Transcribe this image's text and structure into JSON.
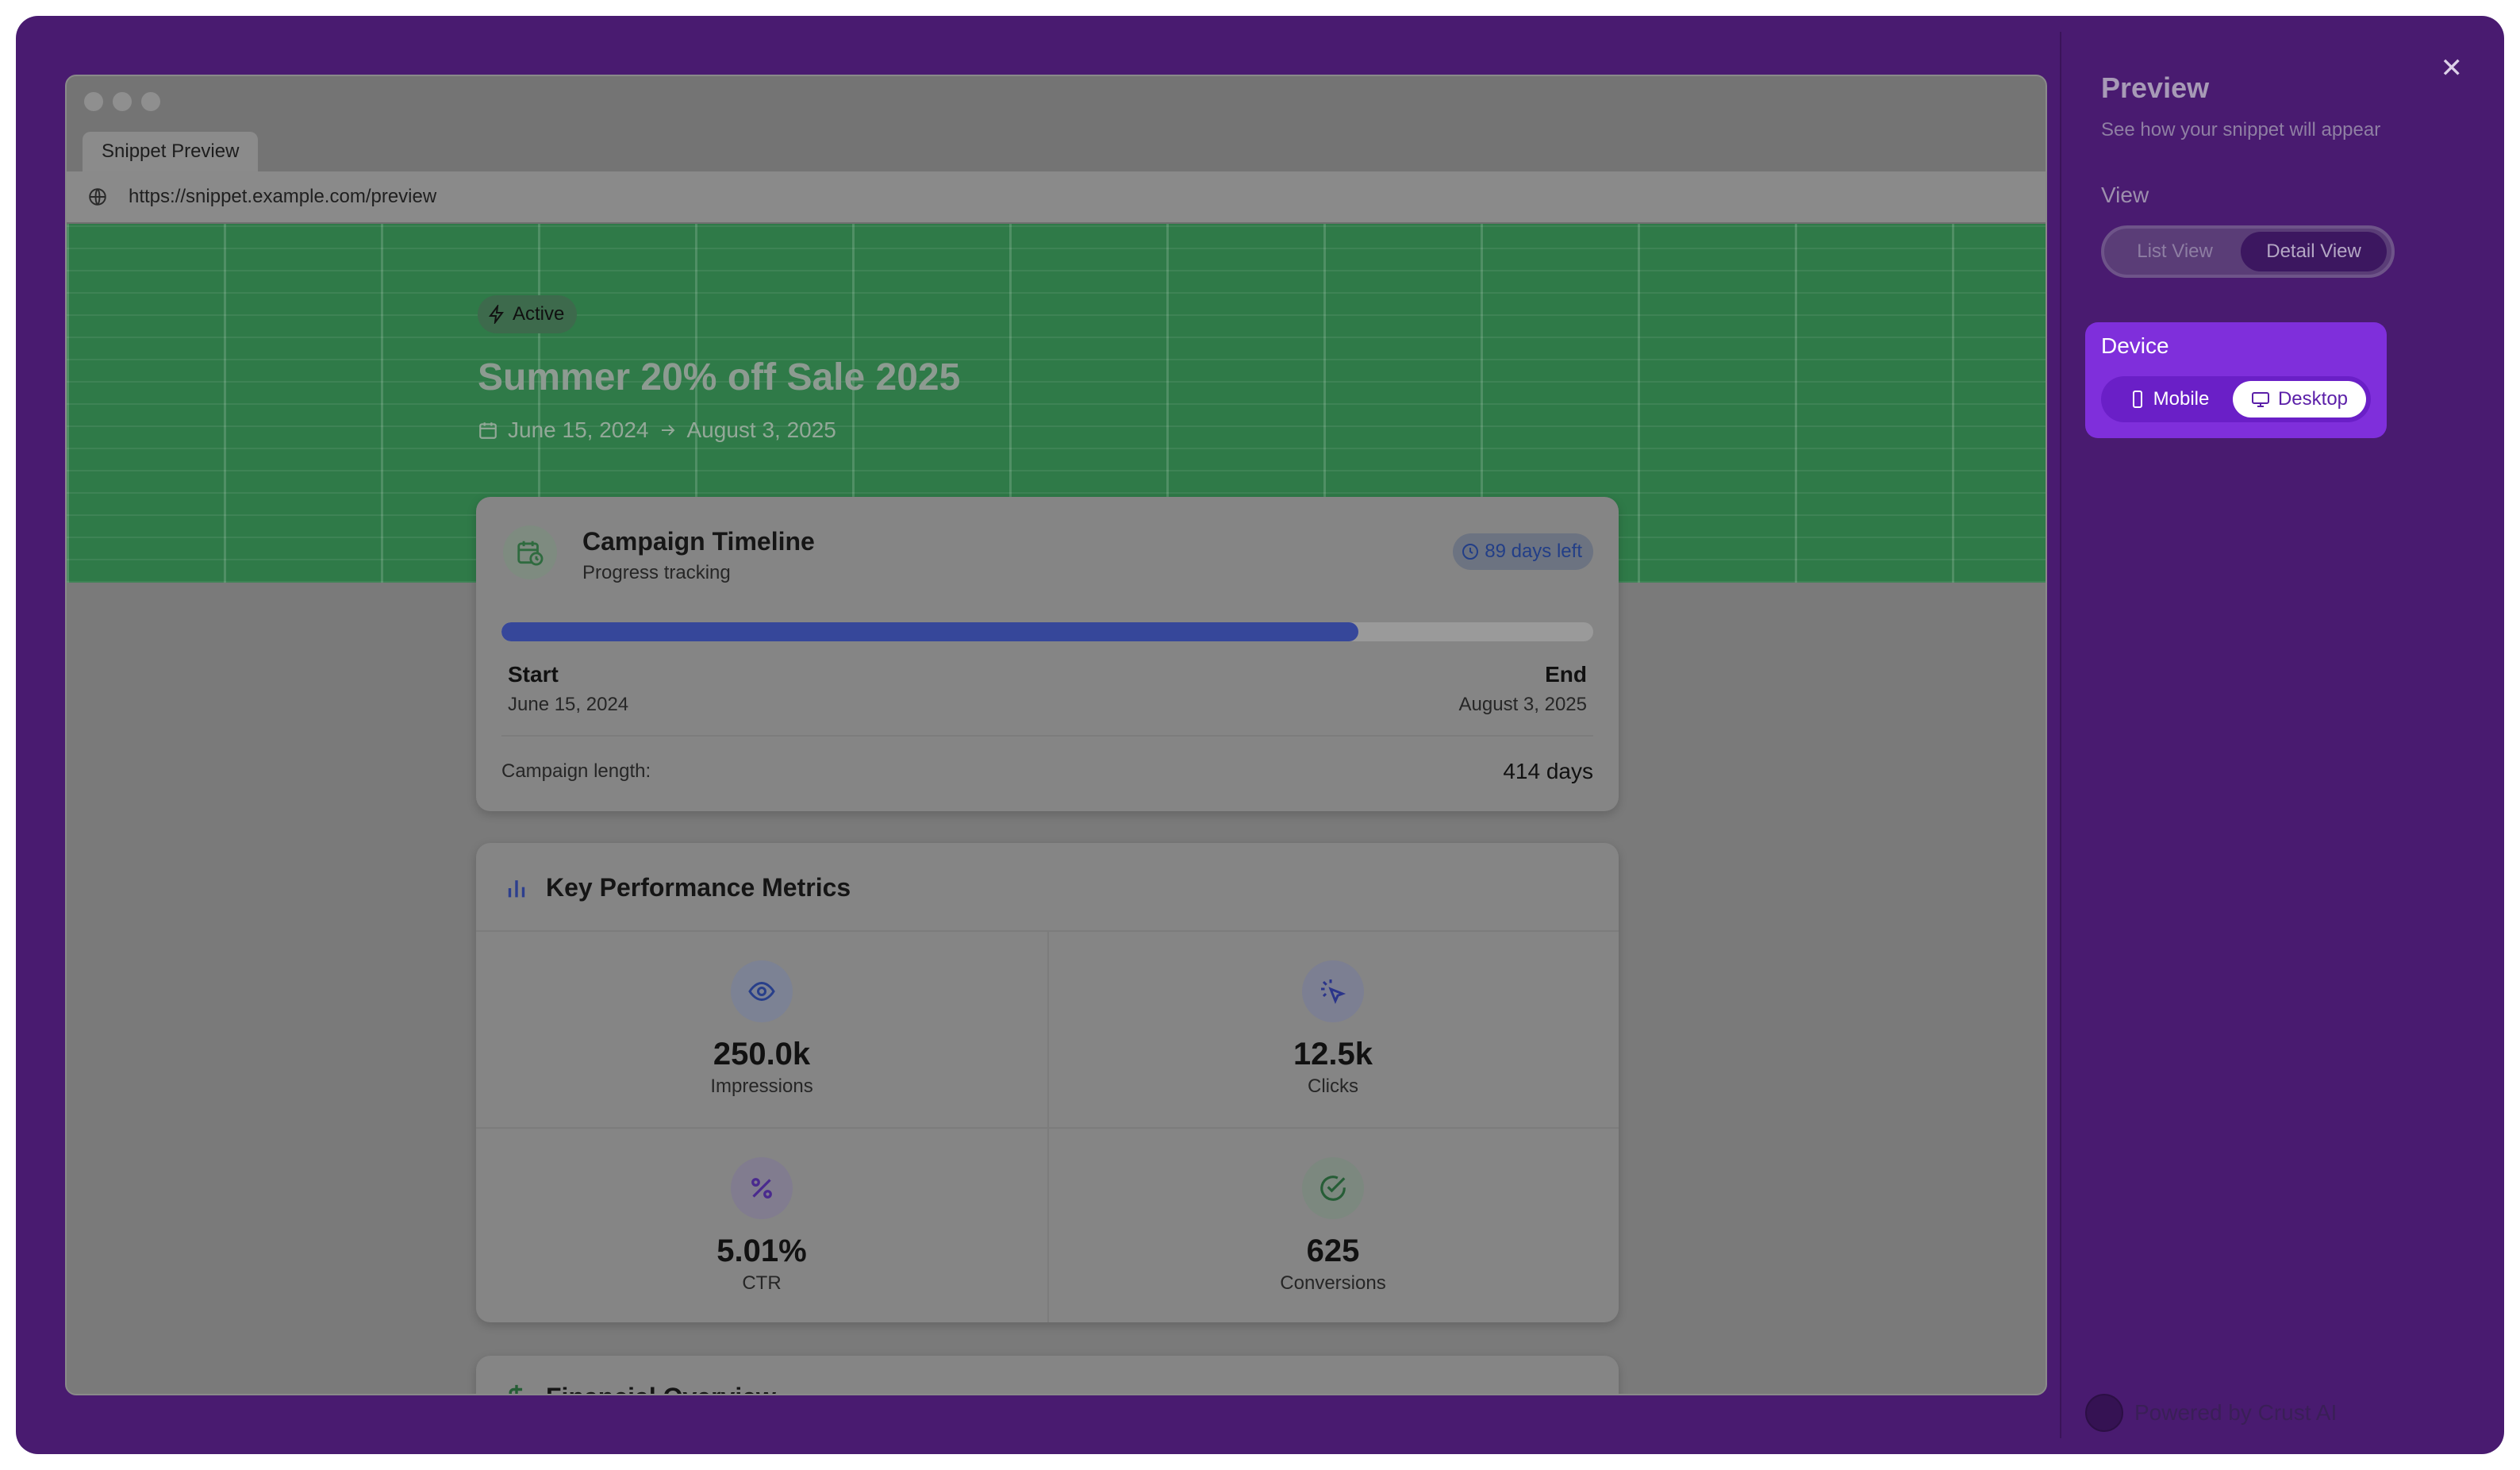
{
  "browser": {
    "tab_title": "Snippet Preview",
    "url": "https://snippet.example.com/preview"
  },
  "hero": {
    "badge": "Active",
    "title": "Summer 20% off Sale 2025",
    "start_date": "June 15, 2024",
    "end_date": "August 3, 2025"
  },
  "timeline": {
    "title": "Campaign Timeline",
    "subtitle": "Progress tracking",
    "days_left": "89 days left",
    "progress_fraction": 0.785,
    "start_label": "Start",
    "start_date": "June 15, 2024",
    "end_label": "End",
    "end_date": "August 3, 2025",
    "length_label": "Campaign length:",
    "length_value": "414 days"
  },
  "metrics": {
    "title": "Key Performance Metrics",
    "items": [
      {
        "value": "250.0k",
        "label": "Impressions",
        "icon": "eye-icon"
      },
      {
        "value": "12.5k",
        "label": "Clicks",
        "icon": "cursor-click-icon"
      },
      {
        "value": "5.01%",
        "label": "CTR",
        "icon": "percent-icon"
      },
      {
        "value": "625",
        "label": "Conversions",
        "icon": "check-circle-icon"
      }
    ]
  },
  "financial": {
    "title": "Financial Overview"
  },
  "panel": {
    "title": "Preview",
    "subtitle": "See how your snippet will appear",
    "view_label": "View",
    "view_options": [
      "List View",
      "Detail View"
    ],
    "view_selected": "Detail View",
    "device_label": "Device",
    "device_options": [
      "Mobile",
      "Desktop"
    ],
    "device_selected": "Desktop",
    "powered_by": "Powered by Crust AI"
  },
  "colors": {
    "frame": "#491b70",
    "device_accent": "#7f2fdb",
    "progress": "#36479a",
    "hero": "#2f7a48"
  }
}
